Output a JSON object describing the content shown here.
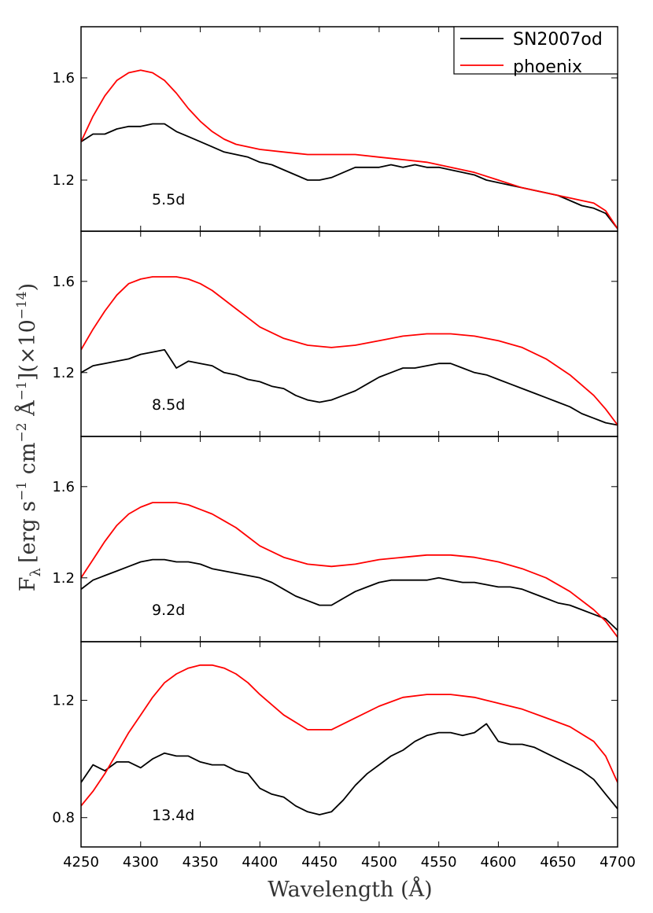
{
  "chart_data": {
    "type": "line",
    "xlabel": "Wavelength (Å)",
    "ylabel": "F_λ [erg s^-1 cm^-2 Å^-1] (×10^-14)",
    "ylabel_parts": {
      "f": "F",
      "lambda": "λ",
      "units_open": "[erg s",
      "exp_s": "−1",
      "cm": " cm",
      "exp_cm": "−2",
      "angstrom": " Å",
      "exp_a": "−1",
      "scale_open": "](×10",
      "exp_scale": "−14",
      "scale_close": ")"
    },
    "xlim": [
      4250,
      4700
    ],
    "xticks": [
      "4250",
      "4300",
      "4350",
      "4400",
      "4450",
      "4500",
      "4550",
      "4600",
      "4650",
      "4700"
    ],
    "legend": {
      "position": "top-right",
      "entries": [
        {
          "name": "SN2007od",
          "color": "#000000"
        },
        {
          "name": "phoenix",
          "color": "#ff0000"
        }
      ]
    },
    "panels": [
      {
        "label": "5.5d",
        "ylim": [
          1.0,
          1.8
        ],
        "yticks": [
          "1.2",
          "1.6"
        ],
        "series": [
          {
            "name": "SN2007od",
            "color": "#000000",
            "x": [
              4250,
              4260,
              4270,
              4280,
              4290,
              4300,
              4310,
              4320,
              4330,
              4340,
              4350,
              4360,
              4370,
              4380,
              4390,
              4400,
              4410,
              4420,
              4430,
              4440,
              4450,
              4460,
              4470,
              4480,
              4490,
              4500,
              4510,
              4520,
              4530,
              4540,
              4550,
              4560,
              4570,
              4580,
              4590,
              4600,
              4610,
              4620,
              4630,
              4640,
              4650,
              4660,
              4670,
              4680,
              4690,
              4700
            ],
            "y": [
              1.35,
              1.38,
              1.38,
              1.4,
              1.41,
              1.41,
              1.42,
              1.42,
              1.39,
              1.37,
              1.35,
              1.33,
              1.31,
              1.3,
              1.29,
              1.27,
              1.26,
              1.24,
              1.22,
              1.2,
              1.2,
              1.21,
              1.23,
              1.25,
              1.25,
              1.25,
              1.26,
              1.25,
              1.26,
              1.25,
              1.25,
              1.24,
              1.23,
              1.22,
              1.2,
              1.19,
              1.18,
              1.17,
              1.16,
              1.15,
              1.14,
              1.12,
              1.1,
              1.09,
              1.07,
              1.01
            ]
          },
          {
            "name": "phoenix",
            "color": "#ff0000",
            "x": [
              4250,
              4260,
              4270,
              4280,
              4290,
              4300,
              4310,
              4320,
              4330,
              4340,
              4350,
              4360,
              4370,
              4380,
              4390,
              4400,
              4420,
              4440,
              4460,
              4480,
              4500,
              4520,
              4540,
              4560,
              4580,
              4600,
              4620,
              4640,
              4660,
              4680,
              4690,
              4700
            ],
            "y": [
              1.35,
              1.45,
              1.53,
              1.59,
              1.62,
              1.63,
              1.62,
              1.59,
              1.54,
              1.48,
              1.43,
              1.39,
              1.36,
              1.34,
              1.33,
              1.32,
              1.31,
              1.3,
              1.3,
              1.3,
              1.29,
              1.28,
              1.27,
              1.25,
              1.23,
              1.2,
              1.17,
              1.15,
              1.13,
              1.11,
              1.08,
              1.01
            ]
          }
        ]
      },
      {
        "label": "8.5d",
        "ylim": [
          0.92,
          1.82
        ],
        "yticks": [
          "1.2",
          "1.6"
        ],
        "series": [
          {
            "name": "SN2007od",
            "color": "#000000",
            "x": [
              4250,
              4260,
              4270,
              4280,
              4290,
              4300,
              4310,
              4320,
              4330,
              4340,
              4350,
              4360,
              4370,
              4380,
              4390,
              4400,
              4410,
              4420,
              4430,
              4440,
              4450,
              4460,
              4470,
              4480,
              4490,
              4500,
              4510,
              4520,
              4530,
              4540,
              4550,
              4560,
              4570,
              4580,
              4590,
              4600,
              4610,
              4620,
              4630,
              4640,
              4650,
              4660,
              4670,
              4680,
              4690,
              4700
            ],
            "y": [
              1.2,
              1.23,
              1.24,
              1.25,
              1.26,
              1.28,
              1.29,
              1.3,
              1.22,
              1.25,
              1.24,
              1.23,
              1.2,
              1.19,
              1.17,
              1.16,
              1.14,
              1.13,
              1.1,
              1.08,
              1.07,
              1.08,
              1.1,
              1.12,
              1.15,
              1.18,
              1.2,
              1.22,
              1.22,
              1.23,
              1.24,
              1.24,
              1.22,
              1.2,
              1.19,
              1.17,
              1.15,
              1.13,
              1.11,
              1.09,
              1.07,
              1.05,
              1.02,
              1.0,
              0.98,
              0.97
            ]
          },
          {
            "name": "phoenix",
            "color": "#ff0000",
            "x": [
              4250,
              4260,
              4270,
              4280,
              4290,
              4300,
              4310,
              4320,
              4330,
              4340,
              4350,
              4360,
              4370,
              4380,
              4390,
              4400,
              4420,
              4440,
              4460,
              4480,
              4500,
              4520,
              4540,
              4560,
              4580,
              4600,
              4620,
              4640,
              4660,
              4680,
              4690,
              4700
            ],
            "y": [
              1.3,
              1.39,
              1.47,
              1.54,
              1.59,
              1.61,
              1.62,
              1.62,
              1.62,
              1.61,
              1.59,
              1.56,
              1.52,
              1.48,
              1.44,
              1.4,
              1.35,
              1.32,
              1.31,
              1.32,
              1.34,
              1.36,
              1.37,
              1.37,
              1.36,
              1.34,
              1.31,
              1.26,
              1.19,
              1.1,
              1.04,
              0.97
            ]
          }
        ]
      },
      {
        "label": "9.2d",
        "ylim": [
          0.92,
          1.82
        ],
        "yticks": [
          "1.2",
          "1.6"
        ],
        "series": [
          {
            "name": "SN2007od",
            "color": "#000000",
            "x": [
              4250,
              4260,
              4270,
              4280,
              4290,
              4300,
              4310,
              4320,
              4330,
              4340,
              4350,
              4360,
              4370,
              4380,
              4390,
              4400,
              4410,
              4420,
              4430,
              4440,
              4450,
              4460,
              4470,
              4480,
              4490,
              4500,
              4510,
              4520,
              4530,
              4540,
              4550,
              4560,
              4570,
              4580,
              4590,
              4600,
              4610,
              4620,
              4630,
              4640,
              4650,
              4660,
              4670,
              4680,
              4690,
              4700
            ],
            "y": [
              1.15,
              1.19,
              1.21,
              1.23,
              1.25,
              1.27,
              1.28,
              1.28,
              1.27,
              1.27,
              1.26,
              1.24,
              1.23,
              1.22,
              1.21,
              1.2,
              1.18,
              1.15,
              1.12,
              1.1,
              1.08,
              1.08,
              1.11,
              1.14,
              1.16,
              1.18,
              1.19,
              1.19,
              1.19,
              1.19,
              1.2,
              1.19,
              1.18,
              1.18,
              1.17,
              1.16,
              1.16,
              1.15,
              1.13,
              1.11,
              1.09,
              1.08,
              1.06,
              1.04,
              1.02,
              0.97
            ]
          },
          {
            "name": "phoenix",
            "color": "#ff0000",
            "x": [
              4250,
              4260,
              4270,
              4280,
              4290,
              4300,
              4310,
              4320,
              4330,
              4340,
              4350,
              4360,
              4370,
              4380,
              4390,
              4400,
              4420,
              4440,
              4460,
              4480,
              4500,
              4520,
              4540,
              4560,
              4580,
              4600,
              4620,
              4640,
              4660,
              4680,
              4690,
              4700
            ],
            "y": [
              1.2,
              1.28,
              1.36,
              1.43,
              1.48,
              1.51,
              1.53,
              1.53,
              1.53,
              1.52,
              1.5,
              1.48,
              1.45,
              1.42,
              1.38,
              1.34,
              1.29,
              1.26,
              1.25,
              1.26,
              1.28,
              1.29,
              1.3,
              1.3,
              1.29,
              1.27,
              1.24,
              1.2,
              1.14,
              1.06,
              1.01,
              0.94
            ]
          }
        ]
      },
      {
        "label": "13.4d",
        "ylim": [
          0.7,
          1.4
        ],
        "yticks": [
          "0.8",
          "1.2"
        ],
        "series": [
          {
            "name": "SN2007od",
            "color": "#000000",
            "x": [
              4250,
              4260,
              4270,
              4280,
              4290,
              4300,
              4310,
              4320,
              4330,
              4340,
              4350,
              4360,
              4370,
              4380,
              4390,
              4400,
              4410,
              4420,
              4430,
              4440,
              4450,
              4460,
              4470,
              4480,
              4490,
              4500,
              4510,
              4520,
              4530,
              4540,
              4550,
              4560,
              4570,
              4580,
              4590,
              4600,
              4610,
              4620,
              4630,
              4640,
              4650,
              4660,
              4670,
              4680,
              4690,
              4700
            ],
            "y": [
              0.92,
              0.98,
              0.96,
              0.99,
              0.99,
              0.97,
              1.0,
              1.02,
              1.01,
              1.01,
              0.99,
              0.98,
              0.98,
              0.96,
              0.95,
              0.9,
              0.88,
              0.87,
              0.84,
              0.82,
              0.81,
              0.82,
              0.86,
              0.91,
              0.95,
              0.98,
              1.01,
              1.03,
              1.06,
              1.08,
              1.09,
              1.09,
              1.08,
              1.09,
              1.12,
              1.06,
              1.05,
              1.05,
              1.04,
              1.02,
              1.0,
              0.98,
              0.96,
              0.93,
              0.88,
              0.83
            ]
          },
          {
            "name": "phoenix",
            "color": "#ff0000",
            "x": [
              4250,
              4260,
              4270,
              4280,
              4290,
              4300,
              4310,
              4320,
              4330,
              4340,
              4350,
              4360,
              4370,
              4380,
              4390,
              4400,
              4420,
              4440,
              4460,
              4480,
              4500,
              4520,
              4540,
              4560,
              4580,
              4600,
              4620,
              4640,
              4660,
              4680,
              4690,
              4700
            ],
            "y": [
              0.84,
              0.89,
              0.95,
              1.02,
              1.09,
              1.15,
              1.21,
              1.26,
              1.29,
              1.31,
              1.32,
              1.32,
              1.31,
              1.29,
              1.26,
              1.22,
              1.15,
              1.1,
              1.1,
              1.14,
              1.18,
              1.21,
              1.22,
              1.22,
              1.21,
              1.19,
              1.17,
              1.14,
              1.11,
              1.06,
              1.01,
              0.92
            ]
          }
        ]
      }
    ]
  }
}
